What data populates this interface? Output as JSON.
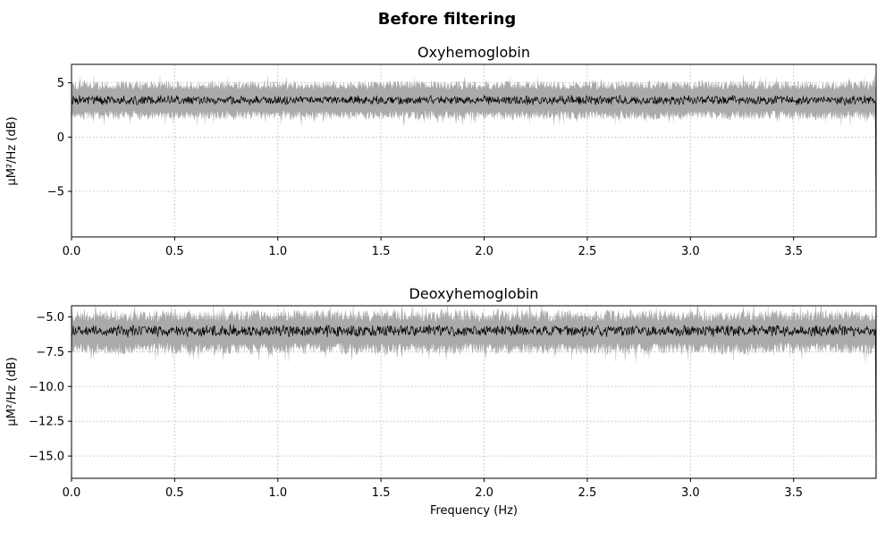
{
  "figure": {
    "suptitle": "Before filtering"
  },
  "colors": {
    "mean_line": "#000000",
    "band_fill": "#aaaaaa",
    "grid": "#b0b0b0",
    "axes": "#000000",
    "background": "#ffffff"
  },
  "chart_data": [
    {
      "type": "line",
      "title": "Oxyhemoglobin",
      "xlabel": "",
      "ylabel": "µM²/Hz (dB)",
      "xlim": [
        0.0,
        3.9
      ],
      "ylim": [
        -9.2,
        6.7
      ],
      "x_ticks": [
        0.0,
        0.5,
        1.0,
        1.5,
        2.0,
        2.5,
        3.0,
        3.5
      ],
      "x_tick_labels": [
        "0.0",
        "0.5",
        "1.0",
        "1.5",
        "2.0",
        "2.5",
        "3.0",
        "3.5"
      ],
      "y_ticks": [
        5,
        0,
        -5
      ],
      "y_tick_labels": [
        "5",
        "0",
        "−5"
      ],
      "grid": true,
      "legend": "none",
      "series": [
        {
          "kind": "mean",
          "approx_level": 3.4,
          "noise_amplitude": 0.35,
          "end_drop_to": -9.2
        },
        {
          "kind": "range_band",
          "lower_approx": 2.0,
          "upper_approx": 4.8,
          "band_noise": 0.45
        }
      ]
    },
    {
      "type": "line",
      "title": "Deoxyhemoglobin",
      "xlabel": "Frequency (Hz)",
      "ylabel": "µM²/Hz (dB)",
      "xlim": [
        0.0,
        3.9
      ],
      "ylim": [
        -16.6,
        -4.2
      ],
      "x_ticks": [
        0.0,
        0.5,
        1.0,
        1.5,
        2.0,
        2.5,
        3.0,
        3.5
      ],
      "x_tick_labels": [
        "0.0",
        "0.5",
        "1.0",
        "1.5",
        "2.0",
        "2.5",
        "3.0",
        "3.5"
      ],
      "y_ticks": [
        -5.0,
        -7.5,
        -10.0,
        -12.5,
        -15.0
      ],
      "y_tick_labels": [
        "−5.0",
        "−7.5",
        "−10.0",
        "−12.5",
        "−15.0"
      ],
      "grid": true,
      "legend": "none",
      "series": [
        {
          "kind": "mean",
          "approx_level": -6.0,
          "noise_amplitude": 0.35,
          "end_drop_to": -16.6
        },
        {
          "kind": "range_band",
          "lower_approx": -7.3,
          "upper_approx": -4.9,
          "band_noise": 0.45
        }
      ]
    }
  ]
}
